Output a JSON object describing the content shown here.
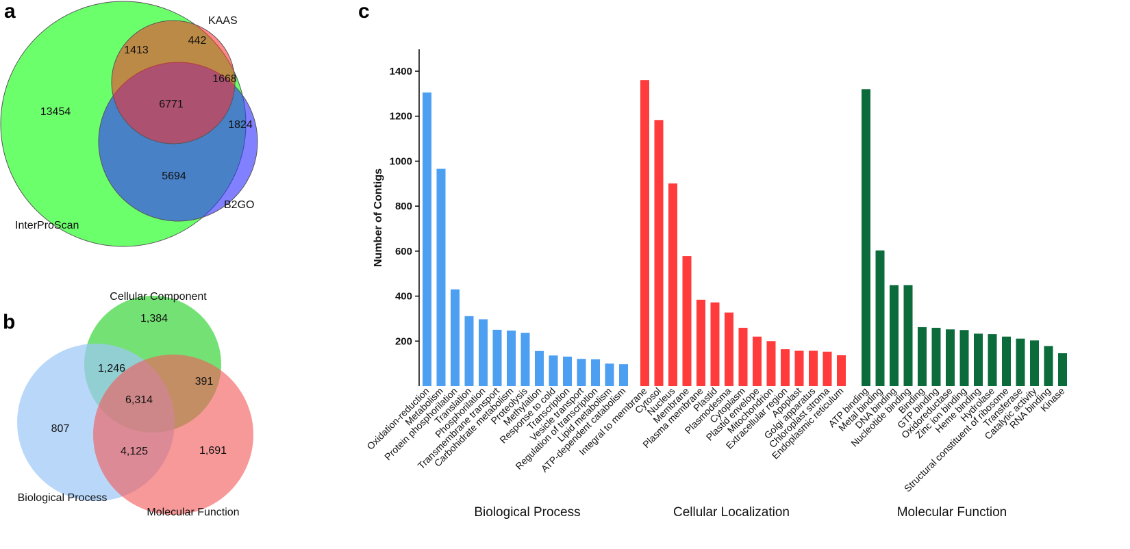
{
  "panels": {
    "a_label": "a",
    "b_label": "b",
    "c_label": "c"
  },
  "venn_a": {
    "sets": [
      {
        "name": "InterProScan",
        "color": "#4cff4c"
      },
      {
        "name": "KAAS",
        "color": "#ff5a5a"
      },
      {
        "name": "B2GO",
        "color": "#5a5aff"
      }
    ],
    "regions": {
      "interproscan_only": "13454",
      "interproscan_kaas": "1413",
      "kaas_only": "442",
      "kaas_b2go": "1668",
      "all_three": "6771",
      "b2go_only": "1824",
      "interproscan_b2go": "5694"
    }
  },
  "venn_b": {
    "sets": [
      {
        "name": "Cellular Component",
        "color": "#55dd55"
      },
      {
        "name": "Biological Process",
        "color": "#8fbff5"
      },
      {
        "name": "Molecular Function",
        "color": "#f47a7a"
      }
    ],
    "regions": {
      "cc_only": "1,384",
      "bp_cc": "1,246",
      "cc_mf": "391",
      "all_three": "6,314",
      "bp_only": "807",
      "bp_mf": "4,125",
      "mf_only": "1,691"
    }
  },
  "chart_data": {
    "type": "bar",
    "title": "",
    "xlabel": "",
    "ylabel": "Number of  Contigs",
    "ylim": [
      0,
      1500
    ],
    "yticks": [
      200,
      400,
      600,
      800,
      1000,
      1200,
      1400
    ],
    "series": [
      {
        "name": "Biological Process",
        "color": "#4d9ff2",
        "categories": [
          "Oxidation-reduction",
          "Metabolism",
          "Protein phosphorilation",
          "Translation",
          "Phosphorilation",
          "Transmembrane transport",
          "Carbohidrate metabolism",
          "Proteolysis",
          "Methylation",
          "Response to cold",
          "Transcription",
          "Vesicle transport",
          "Regulation of transcription",
          "Lipid metabolism",
          "ATP-dependent catabolism"
        ],
        "values": [
          1305,
          966,
          430,
          311,
          297,
          250,
          247,
          237,
          156,
          136,
          131,
          121,
          119,
          100,
          97
        ]
      },
      {
        "name": "Cellular Localization",
        "color": "#ff3b3b",
        "categories": [
          "Integral to membrane",
          "Cytosol",
          "Nucleus",
          "Membrane",
          "Plasma membrane",
          "Plastid",
          "Plasmodesma",
          "Cytoplasm",
          "Plastid envelope",
          "Mitochondrion",
          "Extracellular region",
          "Apoplast",
          "Golgi apparatus",
          "Chloroplast stroma",
          "Endoplasmic reticulum"
        ],
        "values": [
          1360,
          1183,
          901,
          578,
          384,
          372,
          327,
          259,
          220,
          200,
          164,
          157,
          157,
          153,
          137
        ]
      },
      {
        "name": "Molecular  Function",
        "color": "#0b6b3a",
        "categories": [
          "ATP binding",
          "Metal binding",
          "DNA binding",
          "Nucleotide binding",
          "Binding",
          "GTP binding",
          "Oxidoreductase",
          "Zinc ion binding",
          "Heme binding",
          "Hydrolase",
          "Structural constituent of ribosome",
          "Transferase",
          "Catalytic activity",
          "RNA binding",
          "Kinase"
        ],
        "values": [
          1320,
          603,
          449,
          449,
          262,
          259,
          252,
          249,
          233,
          231,
          220,
          211,
          203,
          178,
          146
        ]
      }
    ]
  }
}
